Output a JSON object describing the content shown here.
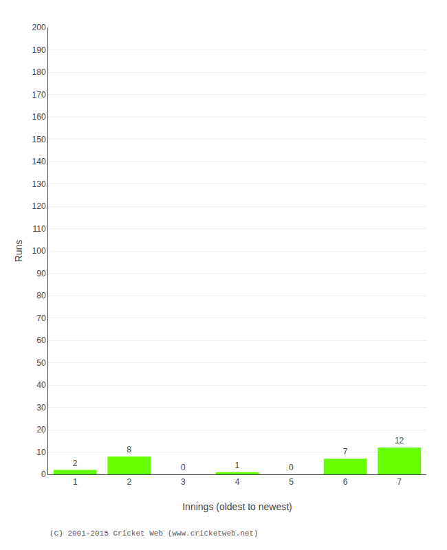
{
  "chart_data": {
    "type": "bar",
    "xlabel": "Innings (oldest to newest)",
    "ylabel": "Runs",
    "categories": [
      "1",
      "2",
      "3",
      "4",
      "5",
      "6",
      "7"
    ],
    "values": [
      2,
      8,
      0,
      1,
      0,
      7,
      12
    ],
    "color": "#66ff00",
    "ylim": [
      0,
      200
    ],
    "yticks": [
      0,
      10,
      20,
      30,
      40,
      50,
      60,
      70,
      80,
      90,
      100,
      110,
      120,
      130,
      140,
      150,
      160,
      170,
      180,
      190,
      200
    ],
    "grid": true,
    "data_labels": true,
    "annotations": [
      "(C) 2001-2015 Cricket Web (www.cricketweb.net)"
    ]
  }
}
